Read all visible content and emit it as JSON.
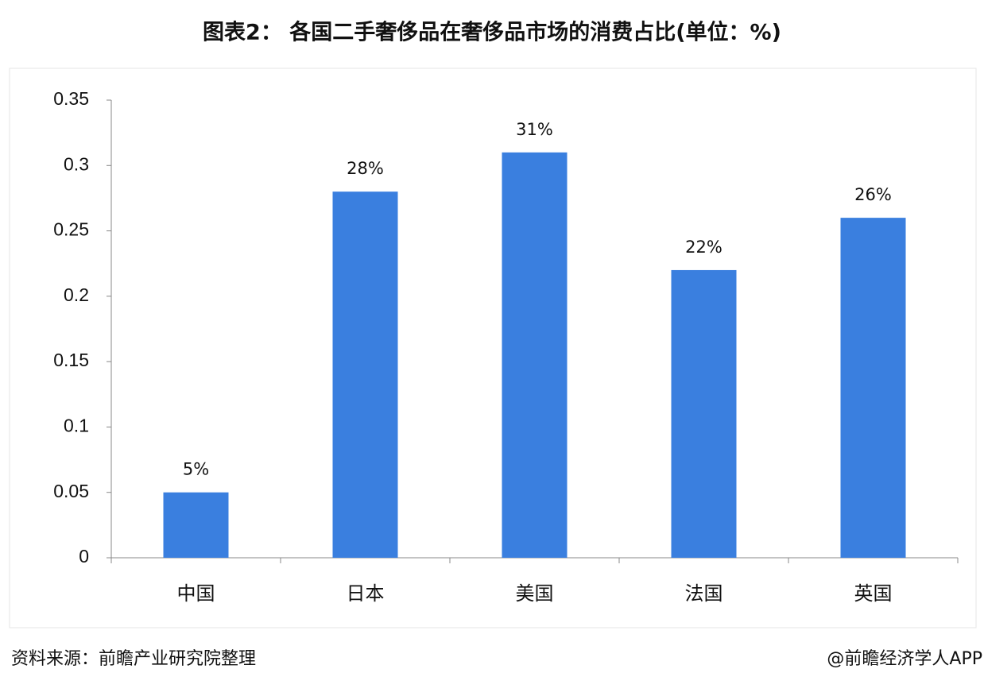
{
  "chart_data": {
    "type": "bar",
    "title": "图表2： 各国二手奢侈品在奢侈品市场的消费占比(单位：%)",
    "categories": [
      "中国",
      "日本",
      "美国",
      "法国",
      "英国"
    ],
    "values": [
      0.05,
      0.28,
      0.31,
      0.22,
      0.26
    ],
    "value_labels": [
      "5%",
      "28%",
      "31%",
      "22%",
      "26%"
    ],
    "color": "#3a7fdf",
    "ylim": [
      0,
      0.35
    ],
    "yticks": [
      0,
      0.05,
      0.1,
      0.15,
      0.2,
      0.25,
      0.3,
      0.35
    ],
    "grid": false,
    "source": "资料来源：前瞻产业研究院整理",
    "credit": "@前瞻经济学人APP"
  }
}
